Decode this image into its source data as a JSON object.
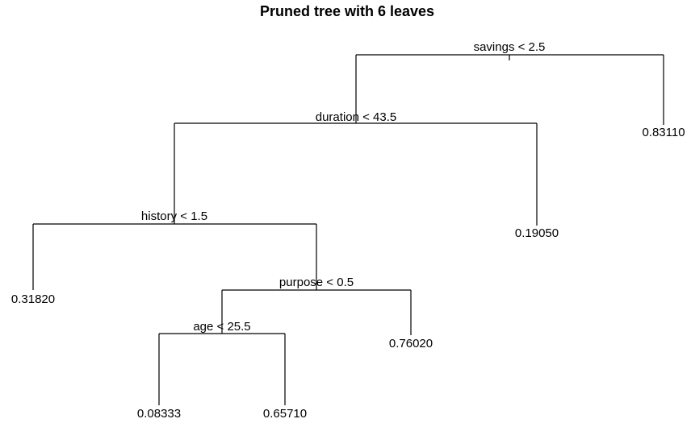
{
  "title": "Pruned tree with 6 leaves",
  "colors": {
    "line": "#000000",
    "text": "#000000",
    "background": "#ffffff"
  },
  "tree": {
    "splits": [
      {
        "id": "root",
        "label": "savings < 2.5"
      },
      {
        "id": "n2",
        "label": "duration < 43.5"
      },
      {
        "id": "n3",
        "label": "history < 1.5"
      },
      {
        "id": "n4",
        "label": "purpose < 0.5"
      },
      {
        "id": "n5",
        "label": "age < 25.5"
      }
    ],
    "leaves": [
      {
        "id": "leaf-root-right",
        "value": "0.83110"
      },
      {
        "id": "leaf-n2-right",
        "value": "0.19050"
      },
      {
        "id": "leaf-n3-left",
        "value": "0.31820"
      },
      {
        "id": "leaf-n4-right",
        "value": "0.76020"
      },
      {
        "id": "leaf-n5-left",
        "value": "0.08333"
      },
      {
        "id": "leaf-n5-right",
        "value": "0.65710"
      }
    ]
  }
}
